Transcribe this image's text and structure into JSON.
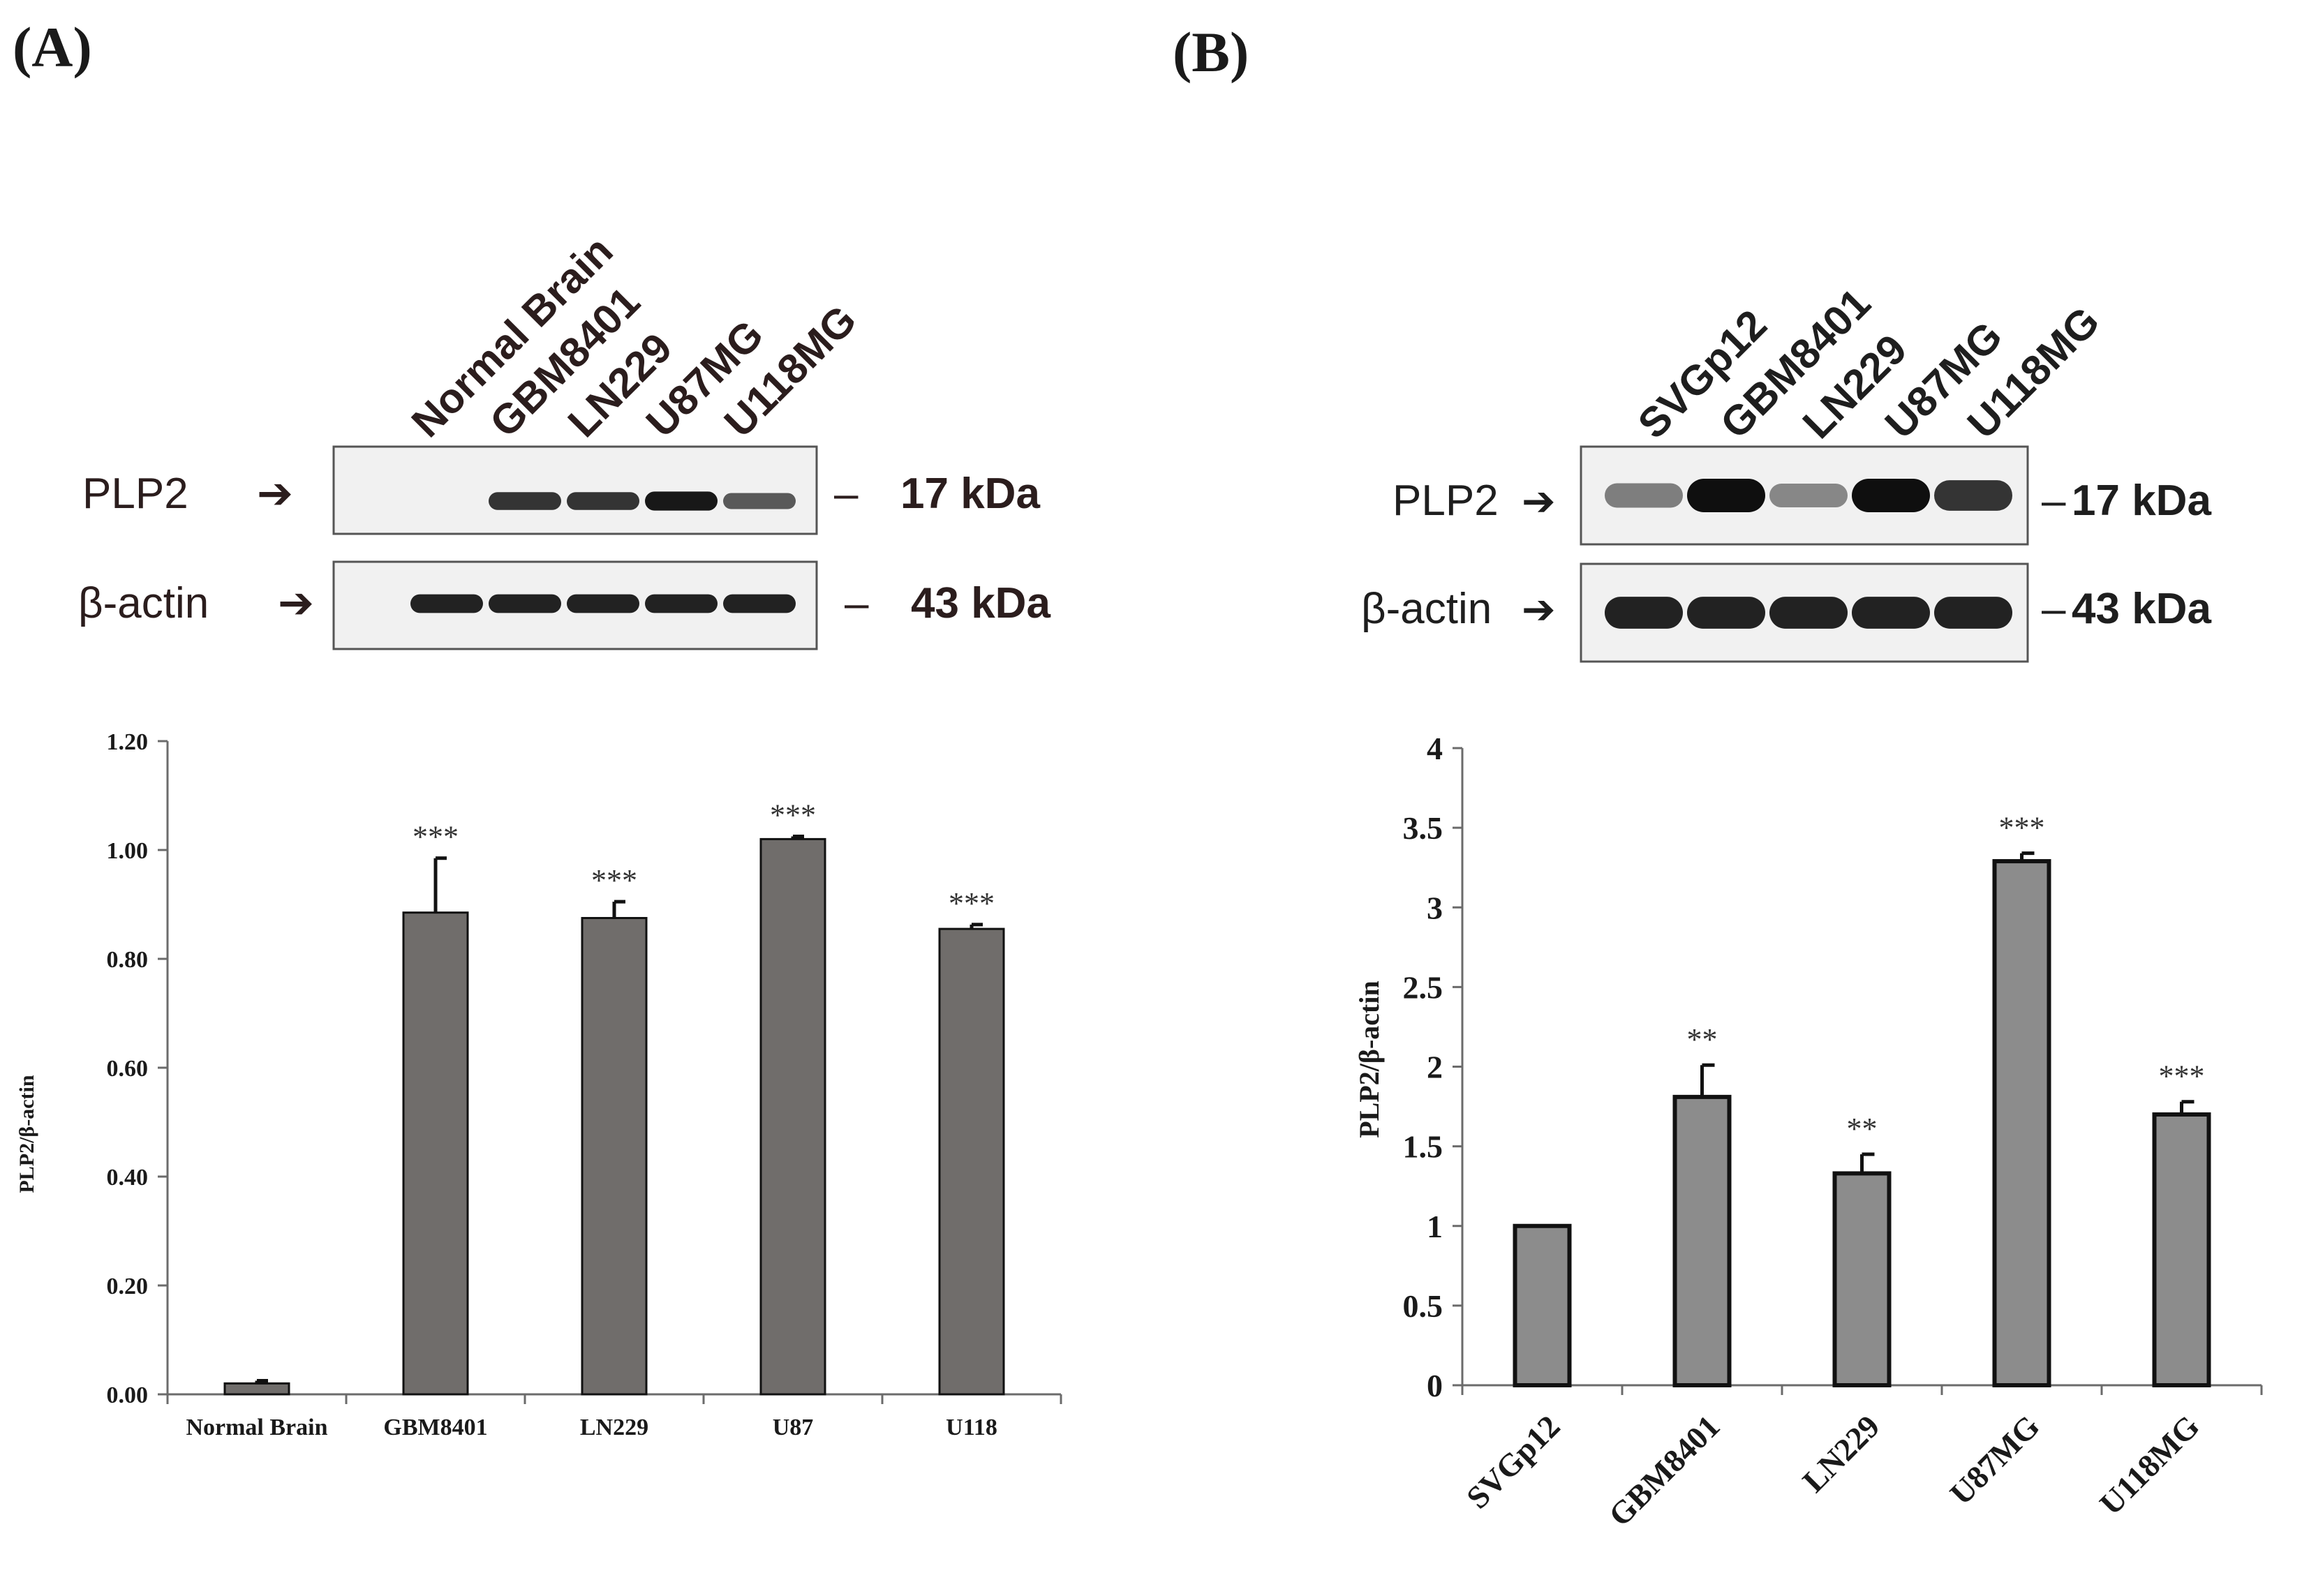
{
  "panels": [
    {
      "letter": "(A)",
      "blot": {
        "lanes": [
          "Normal Brain",
          "GBM8401",
          "LN229",
          "U87MG",
          "U118MG"
        ],
        "rows": [
          {
            "name": "PLP2",
            "marker": "17 kDa",
            "intensity": [
              0.0,
              0.8,
              0.8,
              0.95,
              0.6
            ]
          },
          {
            "name": "β-actin",
            "marker": "43 kDa",
            "intensity": [
              0.9,
              0.9,
              0.9,
              0.9,
              0.9
            ]
          }
        ]
      }
    },
    {
      "letter": "(B)",
      "blot": {
        "lanes": [
          "SVGp12",
          "GBM8401",
          "LN229",
          "U87MG",
          "U118MG"
        ],
        "rows": [
          {
            "name": "PLP2",
            "marker": "17 kDa",
            "intensity": [
              0.4,
              1.0,
              0.35,
              1.0,
              0.8
            ]
          },
          {
            "name": "β-actin",
            "marker": "43 kDa",
            "intensity": [
              0.9,
              0.9,
              0.9,
              0.9,
              0.9
            ]
          }
        ]
      }
    }
  ],
  "chart_data": [
    {
      "type": "bar",
      "ylabel": "PLP2/β-actin",
      "categories": [
        "Normal Brain",
        "GBM8401",
        "LN229",
        "U87",
        "U118"
      ],
      "values": [
        0.02,
        0.885,
        0.875,
        1.02,
        0.855
      ],
      "errors": [
        0.005,
        0.1,
        0.03,
        0.005,
        0.008
      ],
      "annotations": [
        "",
        "***",
        "***",
        "***",
        "***"
      ],
      "ylim": [
        0,
        1.2
      ],
      "yticks": [
        "0.00",
        "0.20",
        "0.40",
        "0.60",
        "0.80",
        "1.00",
        "1.20"
      ],
      "bar_color": "#706d6b"
    },
    {
      "type": "bar",
      "ylabel": "PLP2/β-actin",
      "categories": [
        "SVGp12",
        "GBM8401",
        "LN229",
        "U87MG",
        "U118MG"
      ],
      "values": [
        1.0,
        1.81,
        1.33,
        3.29,
        1.7
      ],
      "errors": [
        0.0,
        0.2,
        0.12,
        0.05,
        0.08
      ],
      "annotations": [
        "",
        "**",
        "**",
        "***",
        "***"
      ],
      "ylim": [
        0,
        4
      ],
      "yticks": [
        "0",
        "0.5",
        "1",
        "1.5",
        "2",
        "2.5",
        "3",
        "3.5",
        "4"
      ],
      "bar_color": "#8c8c8c"
    }
  ]
}
